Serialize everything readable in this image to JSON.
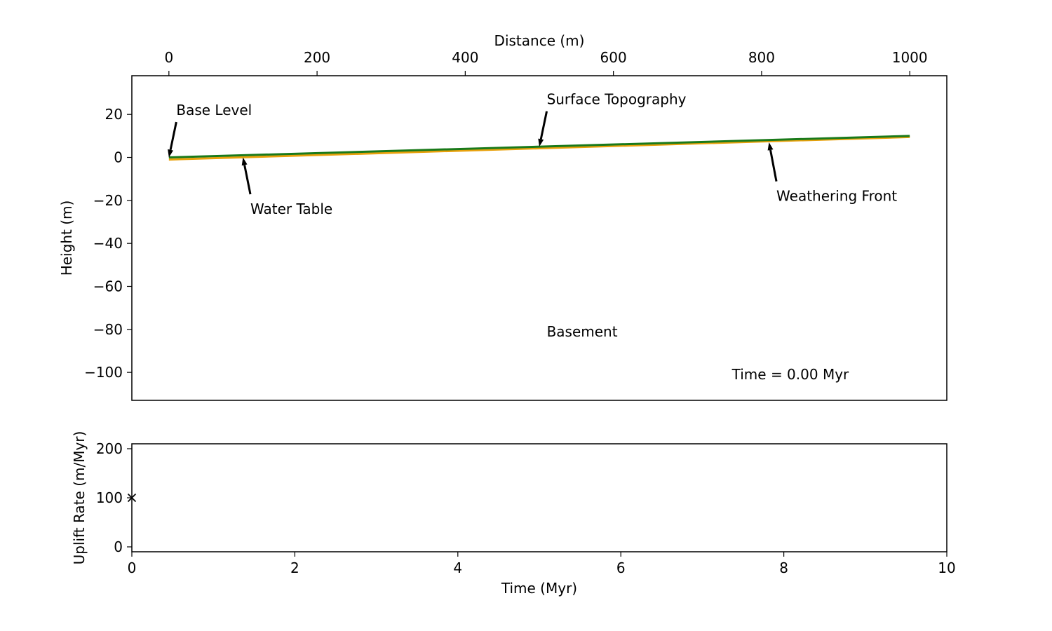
{
  "chart_data": [
    {
      "type": "line",
      "xlabel": "Distance (m)",
      "ylabel": "Height (m)",
      "xlim": [
        -50,
        1050
      ],
      "ylim": [
        -113,
        38
      ],
      "x_ticks": [
        0,
        200,
        400,
        600,
        800,
        1000
      ],
      "y_ticks": [
        20,
        0,
        -20,
        -40,
        -60,
        -80,
        -100
      ],
      "x_tick_labels": [
        "0",
        "200",
        "400",
        "600",
        "800",
        "1000"
      ],
      "y_tick_labels": [
        "20",
        "0",
        "−20",
        "−40",
        "−60",
        "−80",
        "−100"
      ],
      "x_axis_position": "top",
      "series": [
        {
          "color": "#1a7a1a",
          "x": [
            0,
            1000
          ],
          "y": [
            0,
            10
          ]
        },
        {
          "color": "#e8a10c",
          "x": [
            0,
            1000
          ],
          "y": [
            -1,
            9.5
          ]
        }
      ],
      "annotations": [
        {
          "text": "Base Level",
          "text_x": 10,
          "text_y": 22,
          "point_x": 0,
          "point_y": 0
        },
        {
          "text": "Surface Topography",
          "text_x": 510,
          "text_y": 27,
          "point_x": 500,
          "point_y": 5
        },
        {
          "text": "Water Table",
          "text_x": 110,
          "text_y": -24,
          "point_x": 100,
          "point_y": 0
        },
        {
          "text": "Weathering Front",
          "text_x": 820,
          "text_y": -18,
          "point_x": 810,
          "point_y": 7
        },
        {
          "text": "Basement",
          "text_x": 510,
          "text_y": -81
        },
        {
          "text": "Time = 0.00 Myr",
          "text_x": 760,
          "text_y": -101
        }
      ]
    },
    {
      "type": "scatter",
      "xlabel": "Time (Myr)",
      "ylabel": "Uplift Rate (m/Myr)",
      "xlim": [
        0,
        10
      ],
      "ylim": [
        -10,
        210
      ],
      "x_ticks": [
        0,
        2,
        4,
        6,
        8,
        10
      ],
      "y_ticks": [
        0,
        100,
        200
      ],
      "x_tick_labels": [
        "0",
        "2",
        "4",
        "6",
        "8",
        "10"
      ],
      "y_tick_labels": [
        "0",
        "100",
        "200"
      ],
      "points": [
        {
          "x": 0,
          "y": 100,
          "marker": "x"
        }
      ]
    }
  ]
}
